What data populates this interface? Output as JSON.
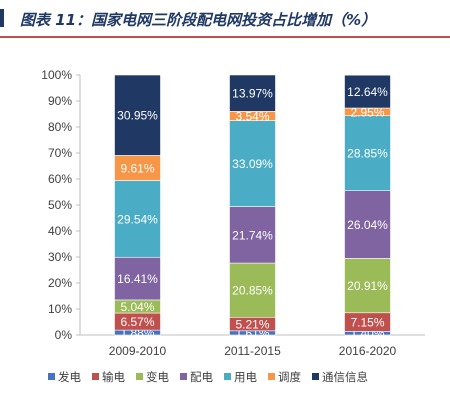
{
  "header": {
    "title": "图表 11：国家电网三阶段配电网投资占比增加（%）"
  },
  "colors": {
    "title": "#1f3864",
    "rule": "#c0504d"
  },
  "chart_data": {
    "type": "bar",
    "stacked": true,
    "percent": true,
    "title": "",
    "xlabel": "",
    "ylabel": "",
    "ylim": [
      0,
      100
    ],
    "yticks": [
      "0%",
      "10%",
      "20%",
      "30%",
      "40%",
      "50%",
      "60%",
      "70%",
      "80%",
      "90%",
      "100%"
    ],
    "categories": [
      "2009-2010",
      "2011-2015",
      "2016-2020"
    ],
    "legend_position": "bottom",
    "series": [
      {
        "name": "发电",
        "color": "#4472c4",
        "values": [
          1.88,
          1.61,
          1.4
        ],
        "labels": [
          "1.88%",
          "1.61%",
          "1.40%"
        ]
      },
      {
        "name": "输电",
        "color": "#c0504d",
        "values": [
          6.57,
          5.21,
          7.15
        ],
        "labels": [
          "6.57%",
          "5.21%",
          "7.15%"
        ]
      },
      {
        "name": "变电",
        "color": "#9bbb59",
        "values": [
          5.04,
          20.85,
          20.91
        ],
        "labels": [
          "5.04%",
          "20.85%",
          "20.91%"
        ]
      },
      {
        "name": "配电",
        "color": "#8064a2",
        "values": [
          16.41,
          21.74,
          26.04
        ],
        "labels": [
          "16.41%",
          "21.74%",
          "26.04%"
        ]
      },
      {
        "name": "用电",
        "color": "#4bacc6",
        "values": [
          29.54,
          33.09,
          28.85
        ],
        "labels": [
          "29.54%",
          "33.09%",
          "28.85%"
        ]
      },
      {
        "name": "调度",
        "color": "#f79646",
        "values": [
          9.61,
          3.54,
          2.95
        ],
        "labels": [
          "9.61%",
          "3.54%",
          "2.95%"
        ]
      },
      {
        "name": "通信信息",
        "color": "#1f3864",
        "values": [
          30.95,
          13.97,
          12.64
        ],
        "labels": [
          "30.95%",
          "13.97%",
          "12.64%"
        ]
      }
    ]
  }
}
